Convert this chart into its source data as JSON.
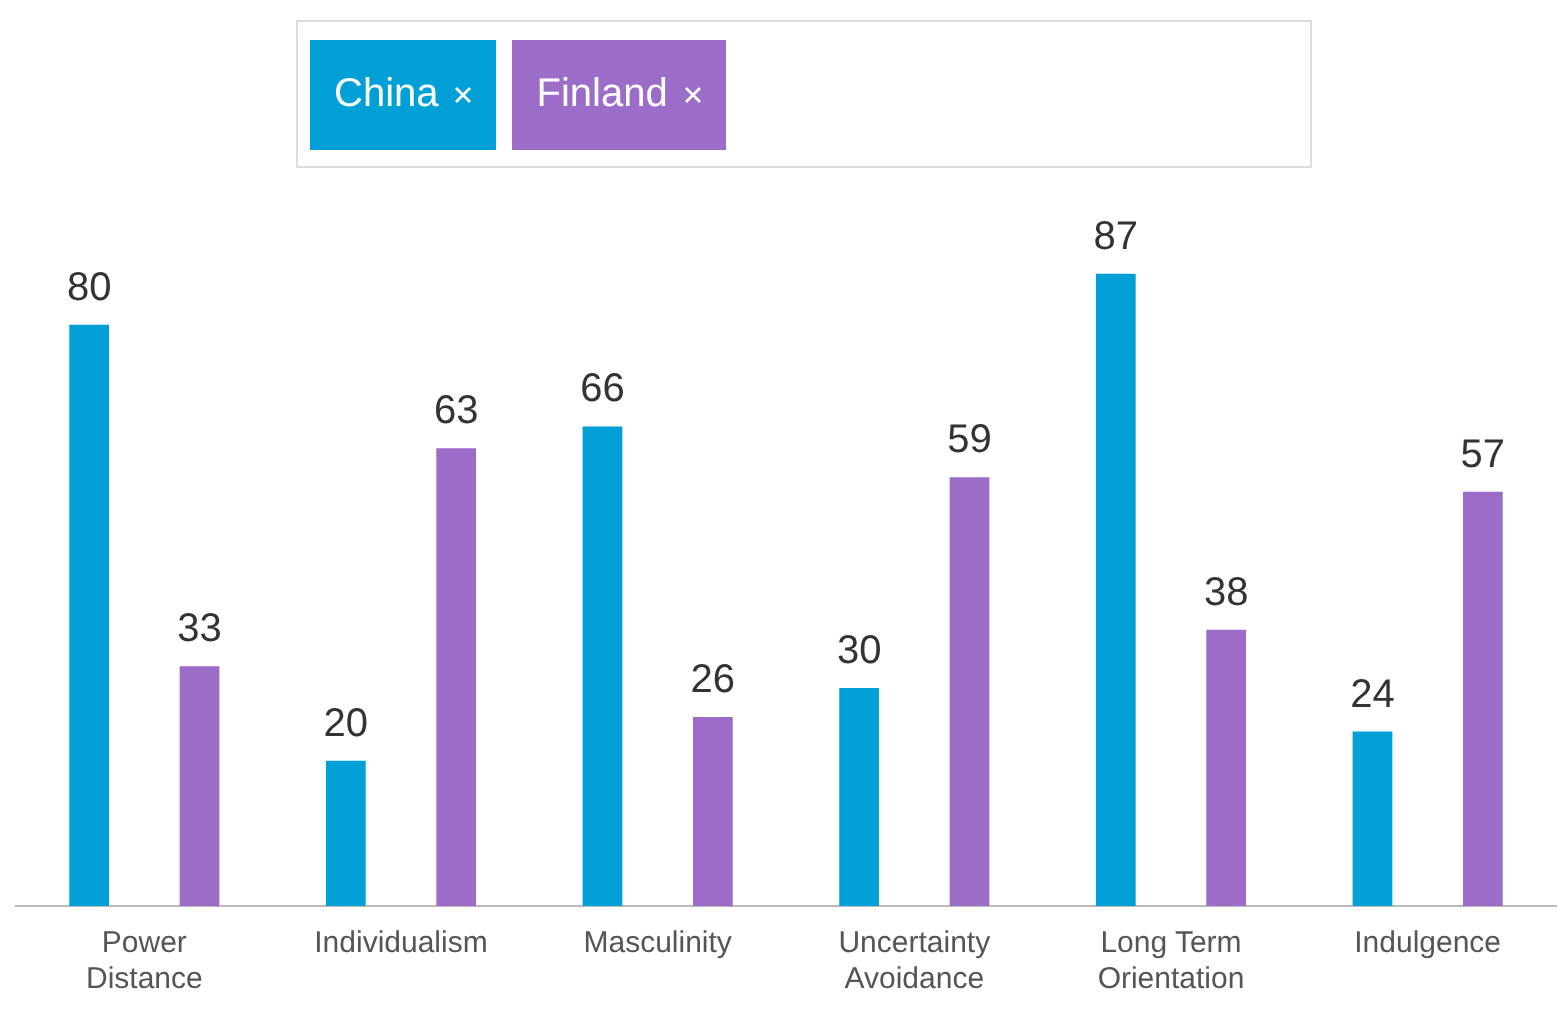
{
  "chart_data": {
    "type": "bar",
    "categories": [
      "Power Distance",
      "Individualism",
      "Masculinity",
      "Uncertainty Avoidance",
      "Long Term Orientation",
      "Indulgence"
    ],
    "series": [
      {
        "name": "China",
        "color": "#00a0d6",
        "values": [
          80,
          20,
          66,
          30,
          87,
          24
        ]
      },
      {
        "name": "Finland",
        "color": "#9b6cc8",
        "values": [
          33,
          63,
          26,
          59,
          38,
          57
        ]
      }
    ],
    "data_labels": true,
    "legend": "top",
    "grid": false
  }
}
